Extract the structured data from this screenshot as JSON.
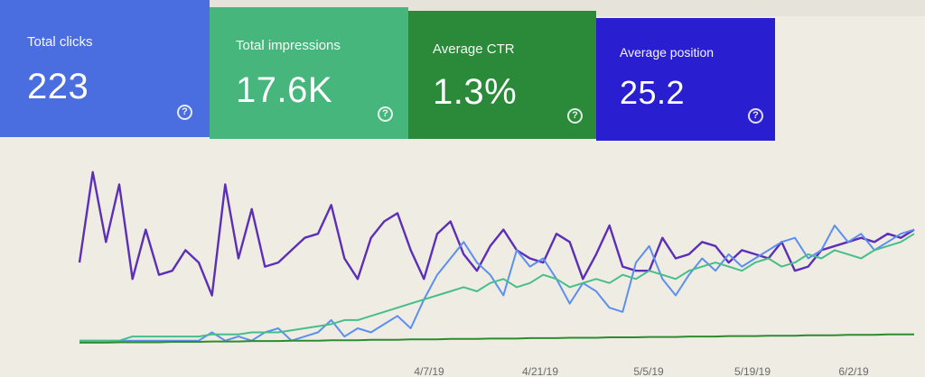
{
  "cards": [
    {
      "key": "clicks",
      "label": "Total clicks",
      "value": "223",
      "color": "#4a6ee0"
    },
    {
      "key": "impressions",
      "label": "Total impressions",
      "value": "17.6K",
      "color": "#46b67c"
    },
    {
      "key": "ctr",
      "label": "Average CTR",
      "value": "1.3%",
      "color": "#2a8a3a"
    },
    {
      "key": "position",
      "label": "Average position",
      "value": "25.2",
      "color": "#2a1fd0"
    }
  ],
  "help_glyph": "?",
  "chart_data": {
    "type": "line",
    "x_ticks": [
      "4/7/19",
      "4/21/19",
      "5/5/19",
      "5/19/19",
      "6/2/19"
    ],
    "series": [
      {
        "color": "#5b2fb8",
        "values": [
          250,
          470,
          300,
          440,
          210,
          330,
          220,
          230,
          280,
          250,
          170,
          440,
          260,
          380,
          240,
          250,
          280,
          310,
          320,
          390,
          260,
          210,
          310,
          350,
          370,
          280,
          210,
          320,
          350,
          270,
          230,
          290,
          330,
          280,
          260,
          250,
          320,
          300,
          210,
          270,
          340,
          240,
          230,
          230,
          310,
          260,
          270,
          300,
          290,
          250,
          280,
          270,
          260,
          300,
          230,
          240,
          280,
          290,
          300,
          310,
          300,
          320,
          310,
          330
        ]
      },
      {
        "color": "#5c8ff0",
        "values": [
          60,
          60,
          60,
          60,
          60,
          60,
          60,
          60,
          60,
          60,
          80,
          60,
          70,
          60,
          80,
          90,
          60,
          70,
          80,
          110,
          70,
          90,
          80,
          100,
          120,
          90,
          160,
          220,
          260,
          300,
          250,
          220,
          170,
          280,
          240,
          260,
          210,
          150,
          200,
          180,
          140,
          130,
          250,
          290,
          210,
          170,
          220,
          260,
          230,
          270,
          240,
          260,
          280,
          300,
          310,
          260,
          280,
          340,
          300,
          320,
          280,
          300,
          320,
          330
        ]
      },
      {
        "color": "#47be8a",
        "values": [
          60,
          60,
          60,
          60,
          70,
          70,
          70,
          70,
          70,
          70,
          75,
          75,
          75,
          80,
          80,
          80,
          85,
          90,
          95,
          100,
          110,
          110,
          120,
          130,
          140,
          150,
          160,
          170,
          180,
          190,
          180,
          200,
          210,
          190,
          200,
          220,
          210,
          190,
          200,
          210,
          200,
          220,
          210,
          230,
          220,
          210,
          230,
          240,
          250,
          240,
          230,
          250,
          260,
          240,
          250,
          270,
          260,
          280,
          270,
          260,
          280,
          290,
          300,
          320
        ]
      },
      {
        "color": "#2e8b2e",
        "values": [
          55,
          55,
          55,
          56,
          56,
          56,
          56,
          57,
          57,
          57,
          58,
          58,
          58,
          59,
          59,
          59,
          60,
          60,
          60,
          61,
          61,
          61,
          62,
          62,
          62,
          63,
          63,
          63,
          64,
          64,
          64,
          65,
          65,
          65,
          66,
          66,
          66,
          67,
          67,
          67,
          68,
          68,
          68,
          69,
          69,
          69,
          70,
          70,
          70,
          71,
          71,
          71,
          72,
          72,
          72,
          73,
          73,
          73,
          74,
          74,
          74,
          75,
          75,
          75
        ]
      }
    ],
    "ylim": [
      0,
      520
    ],
    "grid": false
  }
}
